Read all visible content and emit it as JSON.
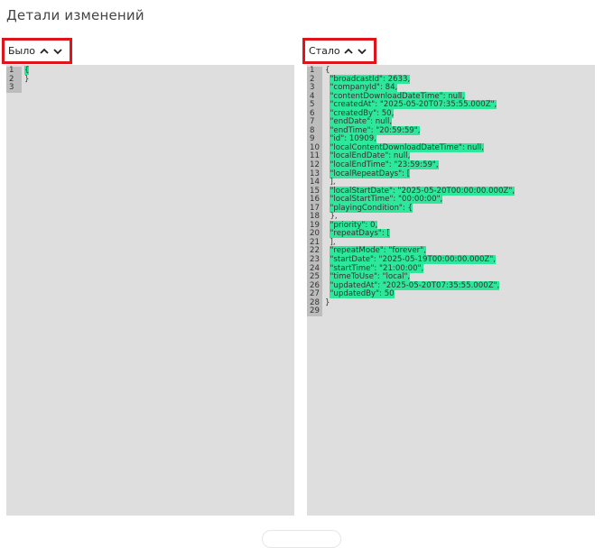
{
  "page": {
    "title": "Детали изменений"
  },
  "before": {
    "label": "Было",
    "lines": [
      {
        "n": "1",
        "t": "{",
        "hl": true
      },
      {
        "n": "2",
        "t": "}",
        "hl": false
      },
      {
        "n": "3",
        "t": "",
        "hl": false
      }
    ]
  },
  "after": {
    "label": "Стало",
    "lines": [
      {
        "n": "1",
        "t": "{",
        "hl": false
      },
      {
        "n": "2",
        "t": "  \"broadcastId\": 2633,",
        "hl": true
      },
      {
        "n": "3",
        "t": "  \"companyId\": 84,",
        "hl": true
      },
      {
        "n": "4",
        "t": "  \"contentDownloadDateTime\": null,",
        "hl": true
      },
      {
        "n": "5",
        "t": "  \"createdAt\": \"2025-05-20T07:35:55.000Z\",",
        "hl": true
      },
      {
        "n": "6",
        "t": "  \"createdBy\": 50,",
        "hl": true
      },
      {
        "n": "7",
        "t": "  \"endDate\": null,",
        "hl": true
      },
      {
        "n": "8",
        "t": "  \"endTime\": \"20:59:59\",",
        "hl": true
      },
      {
        "n": "9",
        "t": "  \"id\": 10909,",
        "hl": true
      },
      {
        "n": "10",
        "t": "  \"localContentDownloadDateTime\": null,",
        "hl": true
      },
      {
        "n": "11",
        "t": "  \"localEndDate\": null,",
        "hl": true
      },
      {
        "n": "12",
        "t": "  \"localEndTime\": \"23:59:59\",",
        "hl": true
      },
      {
        "n": "13",
        "t": "  \"localRepeatDays\": [",
        "hl": true
      },
      {
        "n": "14",
        "t": "  ],",
        "hl": false
      },
      {
        "n": "15",
        "t": "  \"localStartDate\": \"2025-05-20T00:00:00.000Z\",",
        "hl": true
      },
      {
        "n": "16",
        "t": "  \"localStartTime\": \"00:00:00\",",
        "hl": true
      },
      {
        "n": "17",
        "t": "  \"playingCondition\": {",
        "hl": true
      },
      {
        "n": "18",
        "t": "  },",
        "hl": false
      },
      {
        "n": "19",
        "t": "  \"priority\": 0,",
        "hl": true
      },
      {
        "n": "20",
        "t": "  \"repeatDays\": [",
        "hl": true
      },
      {
        "n": "21",
        "t": "  ],",
        "hl": false
      },
      {
        "n": "22",
        "t": "  \"repeatMode\": \"forever\",",
        "hl": true
      },
      {
        "n": "23",
        "t": "  \"startDate\": \"2025-05-19T00:00:00.000Z\",",
        "hl": true
      },
      {
        "n": "24",
        "t": "  \"startTime\": \"21:00:00\",",
        "hl": true
      },
      {
        "n": "25",
        "t": "  \"timeToUse\": \"local\",",
        "hl": true
      },
      {
        "n": "26",
        "t": "  \"updatedAt\": \"2025-05-20T07:35:55.000Z\",",
        "hl": true
      },
      {
        "n": "27",
        "t": "  \"updatedBy\": 50",
        "hl": true
      },
      {
        "n": "28",
        "t": "}",
        "hl": false
      },
      {
        "n": "29",
        "t": "",
        "hl": false
      }
    ]
  },
  "colors": {
    "highlight": "#2de79a",
    "pane_bg": "#dedede",
    "line_number_bg": "#bdbdbd",
    "header_border": "#e0141b"
  },
  "icons": {
    "prev": "chevron-up-icon",
    "next": "chevron-down-icon"
  }
}
